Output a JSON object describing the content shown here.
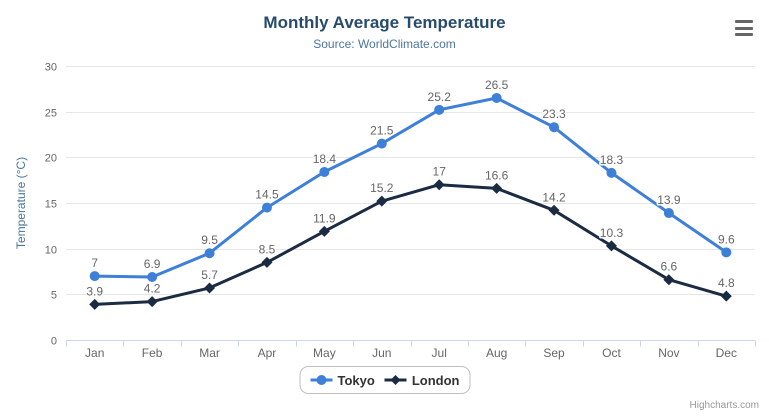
{
  "header": {
    "title": "Monthly Average Temperature",
    "subtitle": "Source: WorldClimate.com"
  },
  "chart_data": {
    "type": "line",
    "categories": [
      "Jan",
      "Feb",
      "Mar",
      "Apr",
      "May",
      "Jun",
      "Jul",
      "Aug",
      "Sep",
      "Oct",
      "Nov",
      "Dec"
    ],
    "series": [
      {
        "name": "Tokyo",
        "color": "#3e7fd8",
        "marker": "circle",
        "values": [
          7,
          6.9,
          9.5,
          14.5,
          18.4,
          21.5,
          25.2,
          26.5,
          23.3,
          18.3,
          13.9,
          9.6
        ]
      },
      {
        "name": "London",
        "color": "#1a2b42",
        "marker": "diamond",
        "values": [
          3.9,
          4.2,
          5.7,
          8.5,
          11.9,
          15.2,
          17,
          16.6,
          14.2,
          10.3,
          6.6,
          4.8
        ]
      }
    ],
    "title": "Monthly Average Temperature",
    "subtitle": "Source: WorldClimate.com",
    "xlabel": "",
    "ylabel": "Temperature (°C)",
    "ylim": [
      0,
      30
    ],
    "ytick_interval": 5,
    "grid": true,
    "data_labels": true,
    "legend_position": "bottom"
  },
  "legend": {
    "items": [
      {
        "label": "Tokyo"
      },
      {
        "label": "London"
      }
    ]
  },
  "credits": {
    "text": "Highcharts.com"
  },
  "colors": {
    "title": "#274b6d",
    "subtitle": "#4d759e",
    "axis_label": "#666666",
    "axis_title": "#4d759e",
    "grid": "#e6e6e6",
    "axis_line": "#ccd6eb",
    "data_label": "#666666",
    "legend_text": "#333333",
    "credits": "#999999"
  }
}
